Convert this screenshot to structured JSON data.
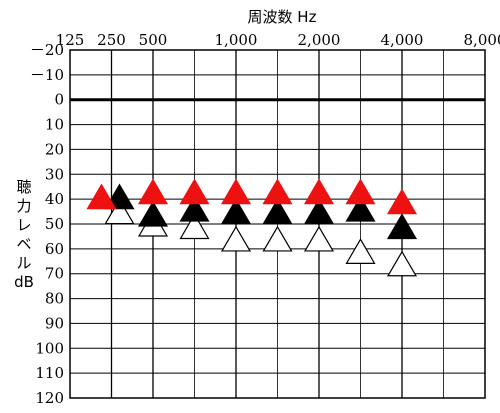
{
  "chart_data": {
    "type": "scatter",
    "title": "周波数 Hz",
    "xlabel": "周波数 Hz",
    "ylabel_chars": [
      "聴",
      "力",
      "レ",
      "ベ",
      "ル",
      "dB"
    ],
    "x_categories": [
      "125",
      "250",
      "500",
      "750",
      "1,000",
      "1,500",
      "2,000",
      "3,000",
      "4,000",
      "6,000",
      "8,000"
    ],
    "x_tick_labels": [
      {
        "category": "125",
        "label": "125"
      },
      {
        "category": "250",
        "label": "250"
      },
      {
        "category": "500",
        "label": "500"
      },
      {
        "category": "1,000",
        "label": "1,000"
      },
      {
        "category": "2,000",
        "label": "2,000"
      },
      {
        "category": "4,000",
        "label": "4,000"
      },
      {
        "category": "8,000",
        "label": "8,000"
      }
    ],
    "y_ticks": [
      -20,
      -10,
      0,
      10,
      20,
      30,
      40,
      50,
      60,
      70,
      80,
      90,
      100,
      110,
      120
    ],
    "y_tick_labels": [
      "－20",
      "－10",
      "0",
      "10",
      "20",
      "30",
      "40",
      "50",
      "60",
      "70",
      "80",
      "90",
      "100",
      "110",
      "120"
    ],
    "ylim": [
      -20,
      120
    ],
    "y_inverted": true,
    "reference_line_y": 0,
    "grid": true,
    "series": [
      {
        "marker": "triangle",
        "color": "#000000",
        "fill": "#ffffff",
        "points": [
          {
            "x": "250",
            "y": 45
          },
          {
            "x": "500",
            "y": 50
          },
          {
            "x": "750",
            "y": 51
          },
          {
            "x": "1,000",
            "y": 56
          },
          {
            "x": "1,500",
            "y": 56
          },
          {
            "x": "2,000",
            "y": 56
          },
          {
            "x": "3,000",
            "y": 61
          },
          {
            "x": "4,000",
            "y": 66
          }
        ]
      },
      {
        "marker": "triangle",
        "color": "#000000",
        "fill": "#000000",
        "points": [
          {
            "x": "250",
            "y": 39
          },
          {
            "x": "500",
            "y": 46
          },
          {
            "x": "750",
            "y": 44
          },
          {
            "x": "1,000",
            "y": 45
          },
          {
            "x": "1,500",
            "y": 45
          },
          {
            "x": "2,000",
            "y": 45
          },
          {
            "x": "3,000",
            "y": 44
          },
          {
            "x": "4,000",
            "y": 51
          }
        ]
      },
      {
        "marker": "triangle",
        "color": "#ee1111",
        "fill": "#ee1111",
        "points": [
          {
            "x": "250",
            "y": 39
          },
          {
            "x": "500",
            "y": 37
          },
          {
            "x": "750",
            "y": 37
          },
          {
            "x": "1,000",
            "y": 37
          },
          {
            "x": "1,500",
            "y": 37
          },
          {
            "x": "2,000",
            "y": 37
          },
          {
            "x": "3,000",
            "y": 37
          },
          {
            "x": "4,000",
            "y": 41
          }
        ]
      }
    ]
  }
}
